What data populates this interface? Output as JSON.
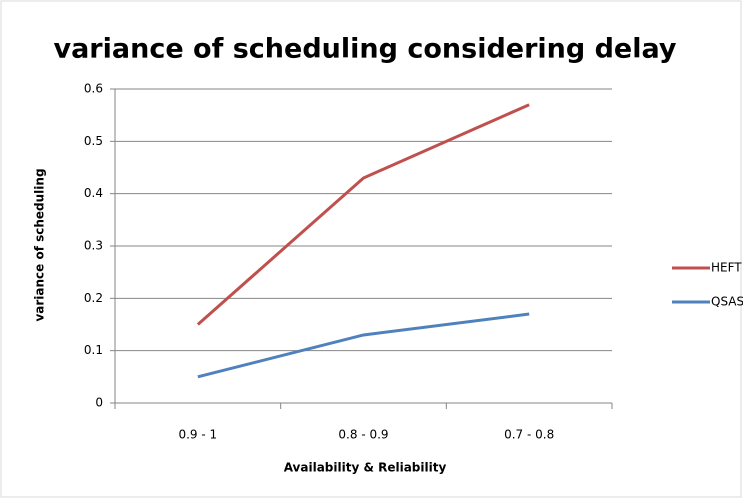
{
  "chart_data": {
    "type": "line",
    "title": "variance of scheduling considering delay",
    "x_label": "Availability & Reliability",
    "y_label": "variance of scheduling",
    "categories": [
      "0.9 - 1",
      "0.8 - 0.9",
      "0.7 - 0.8"
    ],
    "series": [
      {
        "name": "HEFT",
        "color": "#c0504d",
        "values": [
          0.15,
          0.43,
          0.57
        ]
      },
      {
        "name": "QSASA",
        "color": "#4f81bd",
        "values": [
          0.05,
          0.13,
          0.17
        ]
      }
    ],
    "ylim": [
      0,
      0.6
    ],
    "yticks": [
      0,
      0.1,
      0.2,
      0.3,
      0.4,
      0.5,
      0.6
    ],
    "grid": true,
    "legend": "right"
  }
}
